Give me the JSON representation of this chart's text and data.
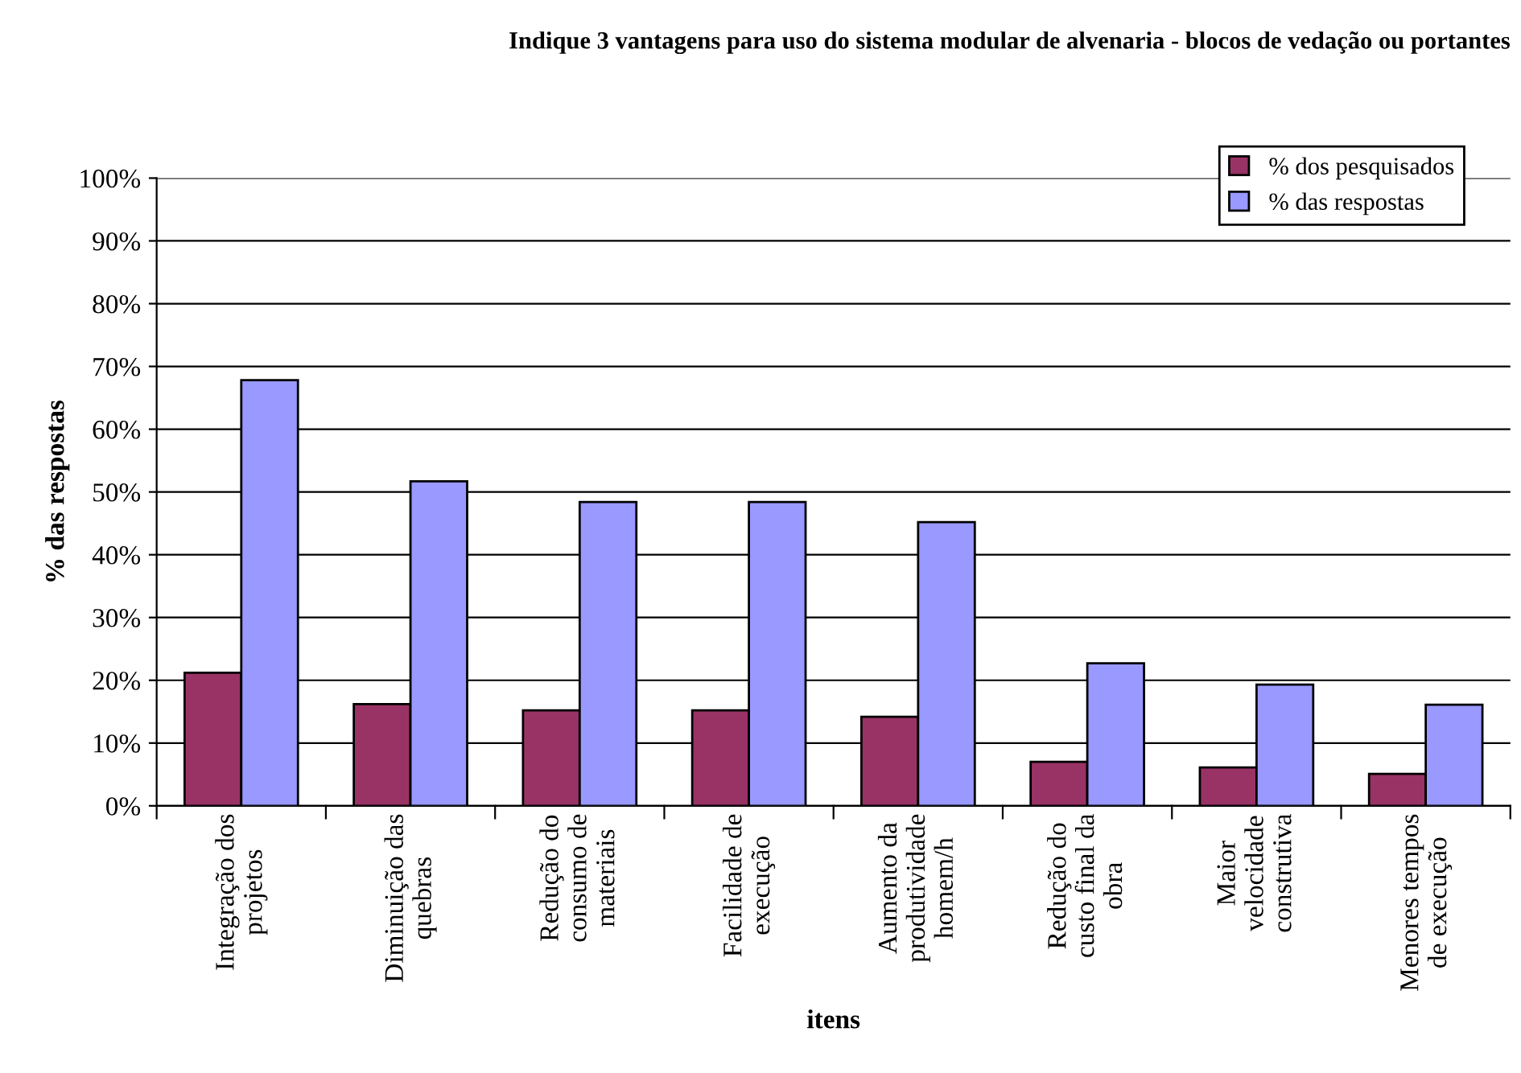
{
  "chart_data": {
    "type": "bar",
    "title": "Indique 3 vantagens para uso do sistema modular de alvenaria - blocos de vedação ou portantes",
    "xlabel": "itens",
    "ylabel": "% das respostas",
    "categories": [
      "Integração dos\nprojetos",
      "Diminuição das\nquebras",
      "Redução do\nconsumo de\nmateriais",
      "Facilidade de\nexecução",
      "Aumento da\nprodutividade\nhomem/h",
      "Redução do\ncusto final da\nobra",
      "Maior\nvelocidade\nconstrutiva",
      "Menores tempos\nde execução"
    ],
    "series": [
      {
        "name": "% dos pesquisados",
        "color": "#993366",
        "values": [
          21.2,
          16.2,
          15.2,
          15.2,
          14.2,
          7.0,
          6.1,
          5.1
        ]
      },
      {
        "name": "% das respostas",
        "color": "#9999ff",
        "values": [
          67.8,
          51.7,
          48.4,
          48.4,
          45.2,
          22.7,
          19.3,
          16.1
        ]
      }
    ],
    "ylim": [
      0,
      100
    ],
    "yticks": [
      {
        "value": 0,
        "label": "0%"
      },
      {
        "value": 10,
        "label": "10%"
      },
      {
        "value": 20,
        "label": "20%"
      },
      {
        "value": 30,
        "label": "30%"
      },
      {
        "value": 40,
        "label": "40%"
      },
      {
        "value": 50,
        "label": "50%"
      },
      {
        "value": 60,
        "label": "60%"
      },
      {
        "value": 70,
        "label": "70%"
      },
      {
        "value": 80,
        "label": "80%"
      },
      {
        "value": 90,
        "label": "90%"
      },
      {
        "value": 100,
        "label": "100%"
      }
    ],
    "grid": "y",
    "legend": "top right"
  }
}
